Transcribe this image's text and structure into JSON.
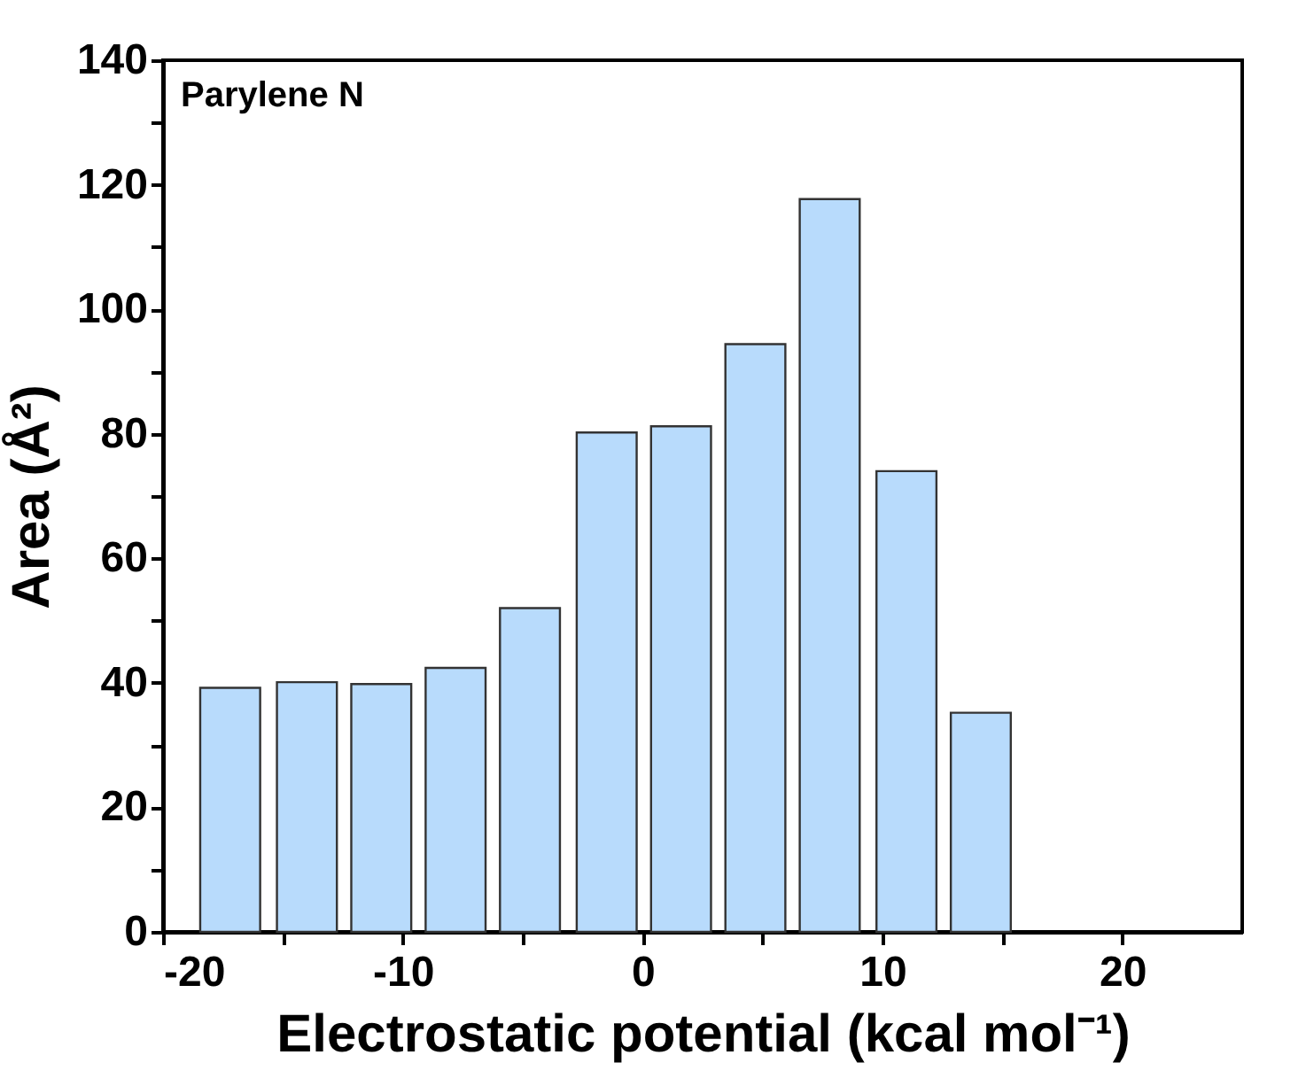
{
  "chart_data": {
    "type": "bar",
    "x": [
      -17.2,
      -14.0,
      -10.9,
      -7.8,
      -4.7,
      -1.5,
      1.6,
      4.7,
      7.8,
      11.0,
      14.1
    ],
    "values": [
      39.2,
      40.1,
      39.8,
      42.4,
      52.0,
      80.2,
      81.2,
      94.4,
      117.7,
      74.0,
      35.2
    ],
    "color": "#b8dbfc",
    "xlabel": "Electrostatic potential (kcal mol⁻¹)",
    "ylabel": "Area (Å²)",
    "xlim": [
      -20,
      25
    ],
    "xticks": [
      -20,
      {
        "value": -15,
        "label": null
      },
      -10,
      {
        "value": -5,
        "label": null
      },
      0,
      {
        "value": 5,
        "label": null
      },
      10,
      {
        "value": 15,
        "label": null
      },
      20
    ],
    "ylim": [
      0,
      140
    ],
    "yticks": [
      0,
      {
        "value": 10,
        "label": null
      },
      20,
      {
        "value": 30,
        "label": null
      },
      40,
      {
        "value": 50,
        "label": null
      },
      60,
      {
        "value": 70,
        "label": null
      },
      80,
      {
        "value": 90,
        "label": null
      },
      100,
      {
        "value": 110,
        "label": null
      },
      120,
      {
        "value": 130,
        "label": null
      },
      140
    ],
    "annotations": [
      "Parylene N"
    ],
    "grid": false
  }
}
